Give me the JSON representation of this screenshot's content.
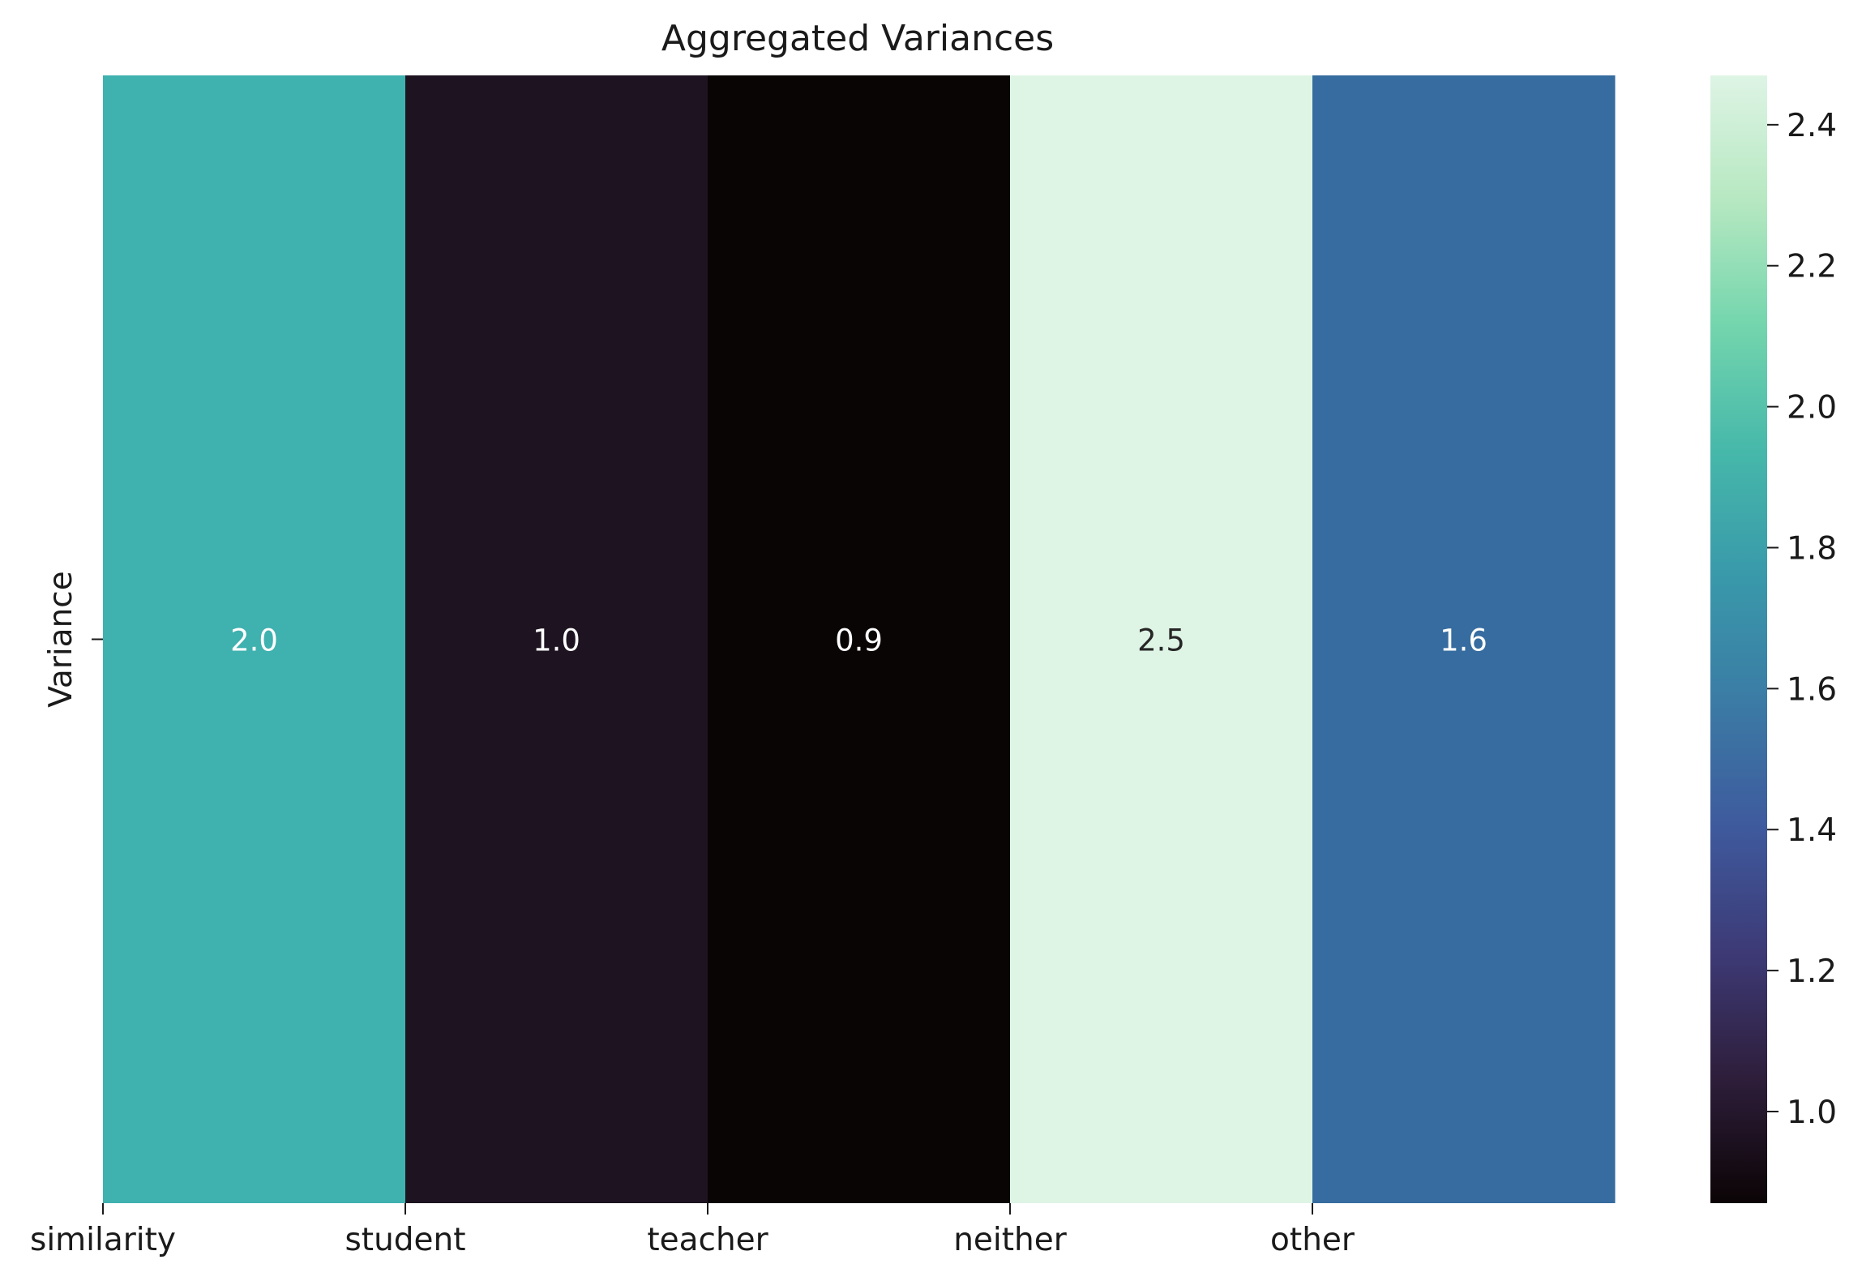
{
  "chart_data": {
    "type": "heatmap",
    "title": "Aggregated Variances",
    "xlabel": "",
    "ylabel": "",
    "categories": [
      "similarity",
      "student",
      "teacher",
      "neither",
      "other"
    ],
    "rows": [
      "Variance"
    ],
    "values": [
      [
        2.0,
        1.0,
        0.9,
        2.5,
        1.6
      ]
    ],
    "annotations": [
      "2.0",
      "1.0",
      "0.9",
      "2.5",
      "1.6"
    ],
    "cell_colors": [
      "#3fb1af",
      "#1e1320",
      "#0a0505",
      "#def4e5",
      "#366c9f"
    ],
    "annotation_colors": [
      "#ffffff",
      "#ffffff",
      "#ffffff",
      "#262626",
      "#ffffff"
    ],
    "colorbar": {
      "range": [
        0.87,
        2.47
      ],
      "ticks": [
        1.0,
        1.2,
        1.4,
        1.6,
        1.8,
        2.0,
        2.2,
        2.4
      ],
      "tick_labels": [
        "1.0",
        "1.2",
        "1.4",
        "1.6",
        "1.8",
        "2.0",
        "2.2",
        "2.4"
      ],
      "colormap": "mako",
      "stops": [
        "#0b0405",
        "#2e1e3b",
        "#3d3a76",
        "#3e5a9d",
        "#3b7ba5",
        "#3999aa",
        "#46b8aa",
        "#73d5ad",
        "#b6e8c1",
        "#def4e5"
      ]
    },
    "grid": false,
    "legend": "colorbar-right"
  }
}
